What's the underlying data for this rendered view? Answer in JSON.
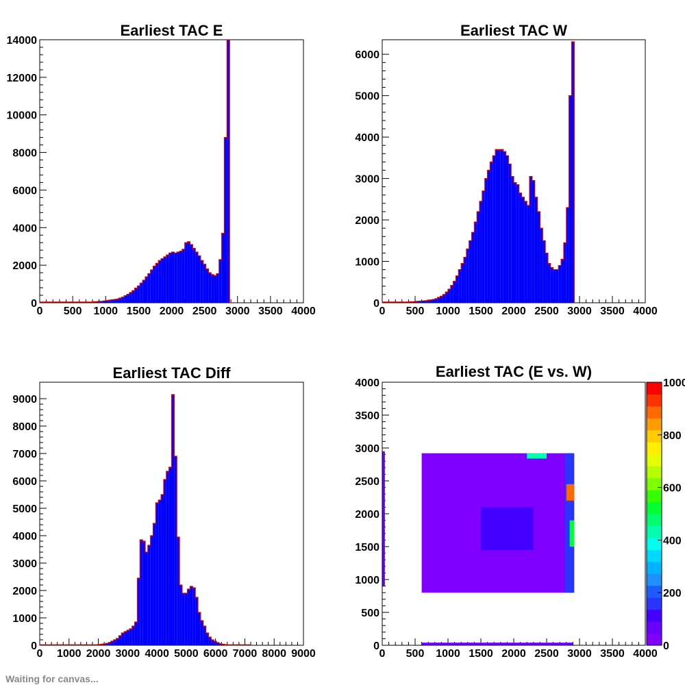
{
  "chart_data": [
    {
      "type": "bar",
      "title": "Earliest TAC E",
      "xlim": [
        0,
        4000
      ],
      "ylim": [
        0,
        14000
      ],
      "xticks": [
        0,
        500,
        1000,
        1500,
        2000,
        2500,
        3000,
        3500,
        4000
      ],
      "yticks": [
        0,
        2000,
        4000,
        6000,
        8000,
        10000,
        12000,
        14000
      ],
      "x_tick_labels": [
        "0",
        "500",
        "1000",
        "1500",
        "2000",
        "2500",
        "3000",
        "3500",
        "4000"
      ],
      "y_tick_labels": [
        "0",
        "2000",
        "4000",
        "6000",
        "8000",
        "10000",
        "12000",
        "14000"
      ],
      "bin_width": 40,
      "bins": [
        [
          0,
          40
        ],
        [
          40,
          40
        ],
        [
          80,
          40
        ],
        [
          120,
          40
        ],
        [
          160,
          40
        ],
        [
          200,
          40
        ],
        [
          240,
          40
        ],
        [
          280,
          40
        ],
        [
          320,
          40
        ],
        [
          360,
          40
        ],
        [
          400,
          40
        ],
        [
          440,
          40
        ],
        [
          480,
          40
        ],
        [
          520,
          40
        ],
        [
          560,
          40
        ],
        [
          600,
          40
        ],
        [
          640,
          40
        ],
        [
          680,
          40
        ],
        [
          720,
          40
        ],
        [
          760,
          40
        ],
        [
          800,
          60
        ],
        [
          840,
          60
        ],
        [
          880,
          80
        ],
        [
          920,
          80
        ],
        [
          960,
          100
        ],
        [
          1000,
          120
        ],
        [
          1040,
          140
        ],
        [
          1080,
          160
        ],
        [
          1120,
          180
        ],
        [
          1160,
          200
        ],
        [
          1200,
          250
        ],
        [
          1240,
          300
        ],
        [
          1280,
          380
        ],
        [
          1320,
          450
        ],
        [
          1360,
          550
        ],
        [
          1400,
          650
        ],
        [
          1440,
          780
        ],
        [
          1480,
          900
        ],
        [
          1520,
          1050
        ],
        [
          1560,
          1200
        ],
        [
          1600,
          1380
        ],
        [
          1640,
          1550
        ],
        [
          1680,
          1750
        ],
        [
          1720,
          1950
        ],
        [
          1760,
          2100
        ],
        [
          1800,
          2250
        ],
        [
          1840,
          2350
        ],
        [
          1880,
          2450
        ],
        [
          1920,
          2550
        ],
        [
          1960,
          2650
        ],
        [
          2000,
          2700
        ],
        [
          2040,
          2650
        ],
        [
          2080,
          2700
        ],
        [
          2120,
          2750
        ],
        [
          2160,
          2850
        ],
        [
          2200,
          3200
        ],
        [
          2240,
          3250
        ],
        [
          2280,
          3100
        ],
        [
          2320,
          2900
        ],
        [
          2360,
          2700
        ],
        [
          2400,
          2500
        ],
        [
          2440,
          2250
        ],
        [
          2480,
          2050
        ],
        [
          2520,
          1800
        ],
        [
          2560,
          1600
        ],
        [
          2600,
          1500
        ],
        [
          2640,
          1450
        ],
        [
          2680,
          1550
        ],
        [
          2720,
          2300
        ],
        [
          2760,
          3700
        ],
        [
          2800,
          8800
        ],
        [
          2840,
          14000
        ],
        [
          2880,
          0
        ]
      ]
    },
    {
      "type": "bar",
      "title": "Earliest TAC W",
      "xlim": [
        0,
        4000
      ],
      "ylim": [
        0,
        6350
      ],
      "xticks": [
        0,
        500,
        1000,
        1500,
        2000,
        2500,
        3000,
        3500,
        4000
      ],
      "yticks": [
        0,
        1000,
        2000,
        3000,
        4000,
        5000,
        6000
      ],
      "x_tick_labels": [
        "0",
        "500",
        "1000",
        "1500",
        "2000",
        "2500",
        "3000",
        "3500",
        "4000"
      ],
      "y_tick_labels": [
        "0",
        "1000",
        "2000",
        "3000",
        "4000",
        "5000",
        "6000"
      ],
      "bin_width": 40,
      "bins": [
        [
          0,
          20
        ],
        [
          40,
          20
        ],
        [
          80,
          20
        ],
        [
          120,
          20
        ],
        [
          160,
          20
        ],
        [
          200,
          20
        ],
        [
          240,
          20
        ],
        [
          280,
          20
        ],
        [
          320,
          20
        ],
        [
          360,
          20
        ],
        [
          400,
          25
        ],
        [
          440,
          25
        ],
        [
          480,
          30
        ],
        [
          520,
          35
        ],
        [
          560,
          40
        ],
        [
          600,
          45
        ],
        [
          640,
          50
        ],
        [
          680,
          60
        ],
        [
          720,
          70
        ],
        [
          760,
          80
        ],
        [
          800,
          100
        ],
        [
          840,
          130
        ],
        [
          880,
          160
        ],
        [
          920,
          200
        ],
        [
          960,
          260
        ],
        [
          1000,
          330
        ],
        [
          1040,
          420
        ],
        [
          1080,
          520
        ],
        [
          1120,
          650
        ],
        [
          1160,
          800
        ],
        [
          1200,
          950
        ],
        [
          1240,
          1100
        ],
        [
          1280,
          1300
        ],
        [
          1320,
          1500
        ],
        [
          1360,
          1700
        ],
        [
          1400,
          1950
        ],
        [
          1440,
          2200
        ],
        [
          1480,
          2450
        ],
        [
          1520,
          2700
        ],
        [
          1560,
          3000
        ],
        [
          1600,
          3200
        ],
        [
          1640,
          3400
        ],
        [
          1680,
          3550
        ],
        [
          1720,
          3700
        ],
        [
          1760,
          3700
        ],
        [
          1800,
          3700
        ],
        [
          1840,
          3650
        ],
        [
          1880,
          3550
        ],
        [
          1920,
          3350
        ],
        [
          1960,
          3050
        ],
        [
          2000,
          2900
        ],
        [
          2040,
          2850
        ],
        [
          2080,
          2650
        ],
        [
          2120,
          2550
        ],
        [
          2160,
          2450
        ],
        [
          2200,
          2350
        ],
        [
          2240,
          3050
        ],
        [
          2280,
          2950
        ],
        [
          2320,
          2550
        ],
        [
          2360,
          2200
        ],
        [
          2400,
          1800
        ],
        [
          2440,
          1500
        ],
        [
          2480,
          1200
        ],
        [
          2520,
          950
        ],
        [
          2560,
          850
        ],
        [
          2600,
          800
        ],
        [
          2640,
          800
        ],
        [
          2680,
          900
        ],
        [
          2720,
          1050
        ],
        [
          2760,
          1450
        ],
        [
          2800,
          2300
        ],
        [
          2840,
          5000
        ],
        [
          2880,
          6300
        ]
      ]
    },
    {
      "type": "bar",
      "title": "Earliest TAC Diff",
      "xlim": [
        0,
        9000
      ],
      "ylim": [
        0,
        9600
      ],
      "xticks": [
        0,
        1000,
        2000,
        3000,
        4000,
        5000,
        6000,
        7000,
        8000,
        9000
      ],
      "yticks": [
        0,
        1000,
        2000,
        3000,
        4000,
        5000,
        6000,
        7000,
        8000,
        9000
      ],
      "x_tick_labels": [
        "0",
        "1000",
        "2000",
        "3000",
        "4000",
        "5000",
        "6000",
        "7000",
        "8000",
        "9000"
      ],
      "y_tick_labels": [
        "0",
        "1000",
        "2000",
        "3000",
        "4000",
        "5000",
        "6000",
        "7000",
        "8000",
        "9000"
      ],
      "bin_width": 90,
      "bins": [
        [
          0,
          20
        ],
        [
          90,
          20
        ],
        [
          180,
          20
        ],
        [
          270,
          20
        ],
        [
          360,
          20
        ],
        [
          450,
          20
        ],
        [
          540,
          20
        ],
        [
          630,
          20
        ],
        [
          720,
          20
        ],
        [
          810,
          20
        ],
        [
          900,
          20
        ],
        [
          990,
          20
        ],
        [
          1080,
          20
        ],
        [
          1170,
          20
        ],
        [
          1260,
          20
        ],
        [
          1350,
          20
        ],
        [
          1440,
          20
        ],
        [
          1530,
          20
        ],
        [
          1620,
          20
        ],
        [
          1710,
          20
        ],
        [
          1800,
          20
        ],
        [
          1890,
          20
        ],
        [
          1980,
          30
        ],
        [
          2070,
          40
        ],
        [
          2160,
          50
        ],
        [
          2250,
          70
        ],
        [
          2340,
          100
        ],
        [
          2430,
          150
        ],
        [
          2520,
          200
        ],
        [
          2610,
          250
        ],
        [
          2700,
          350
        ],
        [
          2790,
          450
        ],
        [
          2880,
          500
        ],
        [
          2970,
          550
        ],
        [
          3060,
          600
        ],
        [
          3150,
          700
        ],
        [
          3240,
          850
        ],
        [
          3330,
          2450
        ],
        [
          3420,
          3850
        ],
        [
          3510,
          3800
        ],
        [
          3600,
          3400
        ],
        [
          3690,
          3650
        ],
        [
          3780,
          4000
        ],
        [
          3870,
          4450
        ],
        [
          3960,
          5200
        ],
        [
          4050,
          5300
        ],
        [
          4140,
          5500
        ],
        [
          4230,
          6050
        ],
        [
          4320,
          6350
        ],
        [
          4410,
          6500
        ],
        [
          4500,
          9150
        ],
        [
          4590,
          6900
        ],
        [
          4680,
          3950
        ],
        [
          4770,
          2200
        ],
        [
          4860,
          1900
        ],
        [
          4950,
          1900
        ],
        [
          5040,
          2050
        ],
        [
          5130,
          2150
        ],
        [
          5220,
          2100
        ],
        [
          5310,
          1750
        ],
        [
          5400,
          1200
        ],
        [
          5490,
          900
        ],
        [
          5580,
          700
        ],
        [
          5670,
          450
        ],
        [
          5760,
          300
        ],
        [
          5850,
          200
        ],
        [
          5940,
          150
        ],
        [
          6030,
          100
        ],
        [
          6120,
          60
        ],
        [
          6210,
          40
        ],
        [
          6300,
          25
        ],
        [
          6390,
          20
        ],
        [
          6480,
          20
        ],
        [
          6570,
          20
        ],
        [
          6660,
          20
        ],
        [
          6750,
          20
        ],
        [
          6840,
          20
        ],
        [
          6930,
          20
        ],
        [
          7020,
          20
        ],
        [
          7110,
          20
        ]
      ]
    },
    {
      "type": "heatmap",
      "title": "Earliest TAC (E vs. W)",
      "xlim": [
        0,
        4000
      ],
      "ylim": [
        0,
        4000
      ],
      "xticks": [
        0,
        500,
        1000,
        1500,
        2000,
        2500,
        3000,
        3500,
        4000
      ],
      "yticks": [
        0,
        500,
        1000,
        1500,
        2000,
        2500,
        3000,
        3500,
        4000
      ],
      "x_tick_labels": [
        "0",
        "500",
        "1000",
        "1500",
        "2000",
        "2500",
        "3000",
        "3500",
        "4000"
      ],
      "y_tick_labels": [
        "0",
        "500",
        "1000",
        "1500",
        "2000",
        "2500",
        "3000",
        "3500",
        "4000"
      ],
      "zlim": [
        0,
        1000
      ],
      "colorbar_labels": [
        "0",
        "200",
        "400",
        "600",
        "800",
        "1000"
      ],
      "colorbar_label_values": [
        0,
        200,
        400,
        600,
        800,
        1000
      ],
      "palette": [
        "#7f00ff",
        "#6a00ff",
        "#4400ff",
        "#2a35ff",
        "#1f5cff",
        "#1e90ff",
        "#00b4ff",
        "#00d8ff",
        "#00ffee",
        "#00ffb0",
        "#00ff70",
        "#00ff33",
        "#33ff00",
        "#7dff00",
        "#b5ff00",
        "#e6ff00",
        "#ffee00",
        "#ffcc00",
        "#ff9c00",
        "#ff6a00",
        "#ff3300",
        "#ff0000"
      ],
      "regions": [
        {
          "name": "main-block",
          "x": [
            600,
            2900
          ],
          "y": [
            800,
            2920
          ],
          "value": 40
        },
        {
          "name": "inner-blob",
          "x": [
            1500,
            2300
          ],
          "y": [
            1450,
            2100
          ],
          "value": 110
        },
        {
          "name": "right-edge-band",
          "x": [
            2780,
            2920
          ],
          "y": [
            800,
            2920
          ],
          "value": 180
        },
        {
          "name": "right-edge-hot-top",
          "x": [
            2800,
            2920
          ],
          "y": [
            2200,
            2450
          ],
          "value": 900
        },
        {
          "name": "right-edge-hot-mid",
          "x": [
            2850,
            2920
          ],
          "y": [
            1500,
            1900
          ],
          "value": 520
        },
        {
          "name": "top-right-spot",
          "x": [
            2200,
            2500
          ],
          "y": [
            2840,
            2920
          ],
          "value": 420
        },
        {
          "name": "bottom-band",
          "x": [
            600,
            2900
          ],
          "y": [
            0,
            40
          ],
          "value": 70
        },
        {
          "name": "left-band",
          "x": [
            0,
            40
          ],
          "y": [
            900,
            2950
          ],
          "value": 60
        }
      ]
    }
  ],
  "footer_text": "Waiting for canvas..."
}
